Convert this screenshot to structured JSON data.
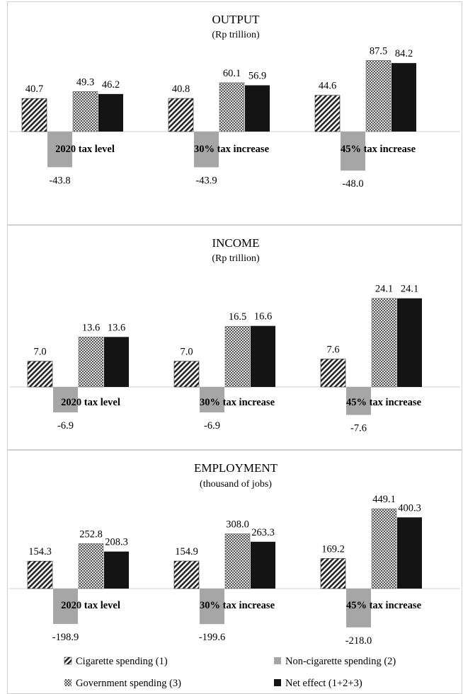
{
  "colors": {
    "cigarette": "#262626",
    "non_cigarette": "#a6a6a6",
    "government": "#8c8c8c",
    "net": "#141414",
    "panel_border": "#d0d0d0"
  },
  "legend": [
    {
      "key": "cigarette",
      "label": "Cigarette spending (1)",
      "pattern": "diagonal-hatch"
    },
    {
      "key": "non_cigarette",
      "label": "Non-cigarette spending (2)",
      "pattern": "solid-gray"
    },
    {
      "key": "government",
      "label": "Government spending (3)",
      "pattern": "checker"
    },
    {
      "key": "net",
      "label": "Net effect (1+2+3)",
      "pattern": "solid-black"
    }
  ],
  "chart_data": [
    {
      "type": "bar",
      "title": "OUTPUT",
      "subtitle": "(Rp trillion)",
      "categories": [
        "2020 tax level",
        "30% tax increase",
        "45% tax increase"
      ],
      "series": [
        {
          "name": "Cigarette spending (1)",
          "values": [
            40.7,
            40.8,
            44.6
          ],
          "labels": [
            "40.7",
            "40.8",
            "44.6"
          ]
        },
        {
          "name": "Non-cigarette spending (2)",
          "values": [
            -43.8,
            -43.9,
            -48.0
          ],
          "labels": [
            "-43.8",
            "-43.9",
            "-48.0"
          ]
        },
        {
          "name": "Government spending (3)",
          "values": [
            49.3,
            60.1,
            87.5
          ],
          "labels": [
            "49.3",
            "60.1",
            "87.5"
          ]
        },
        {
          "name": "Net effect (1+2+3)",
          "values": [
            46.2,
            56.9,
            84.2
          ],
          "labels": [
            "46.2",
            "56.9",
            "84.2"
          ]
        }
      ],
      "ylim": [
        -60,
        100
      ],
      "grid": false
    },
    {
      "type": "bar",
      "title": "INCOME",
      "subtitle": "(Rp trillion)",
      "categories": [
        "2020 tax level",
        "30% tax increase",
        "45% tax increase"
      ],
      "series": [
        {
          "name": "Cigarette spending (1)",
          "values": [
            7.0,
            7.0,
            7.6
          ],
          "labels": [
            "7.0",
            "7.0",
            "7.6"
          ]
        },
        {
          "name": "Non-cigarette spending (2)",
          "values": [
            -6.9,
            -6.9,
            -7.6
          ],
          "labels": [
            "-6.9",
            "-6.9",
            "-7.6"
          ]
        },
        {
          "name": "Government spending (3)",
          "values": [
            13.6,
            16.5,
            24.1
          ],
          "labels": [
            "13.6",
            "16.5",
            "24.1"
          ]
        },
        {
          "name": "Net effect (1+2+3)",
          "values": [
            13.6,
            16.6,
            24.1
          ],
          "labels": [
            "13.6",
            "16.6",
            "24.1"
          ]
        }
      ],
      "ylim": [
        -10,
        30
      ],
      "grid": false
    },
    {
      "type": "bar",
      "title": "EMPLOYMENT",
      "subtitle": "(thousand of jobs)",
      "categories": [
        "2020 tax level",
        "30% tax increase",
        "45% tax increase"
      ],
      "series": [
        {
          "name": "Cigarette spending (1)",
          "values": [
            154.3,
            154.9,
            169.2
          ],
          "labels": [
            "154.3",
            "154.9",
            "169.2"
          ]
        },
        {
          "name": "Non-cigarette spending (2)",
          "values": [
            -198.9,
            -199.6,
            -218.0
          ],
          "labels": [
            "-198.9",
            "-199.6",
            "-218.0"
          ]
        },
        {
          "name": "Government spending (3)",
          "values": [
            252.8,
            308.0,
            449.1
          ],
          "labels": [
            "252.8",
            "308.0",
            "449.1"
          ]
        },
        {
          "name": "Net effect (1+2+3)",
          "values": [
            208.3,
            263.3,
            400.3
          ],
          "labels": [
            "208.3",
            "263.3",
            "400.3"
          ]
        }
      ],
      "ylim": [
        -250,
        500
      ],
      "grid": false
    }
  ]
}
